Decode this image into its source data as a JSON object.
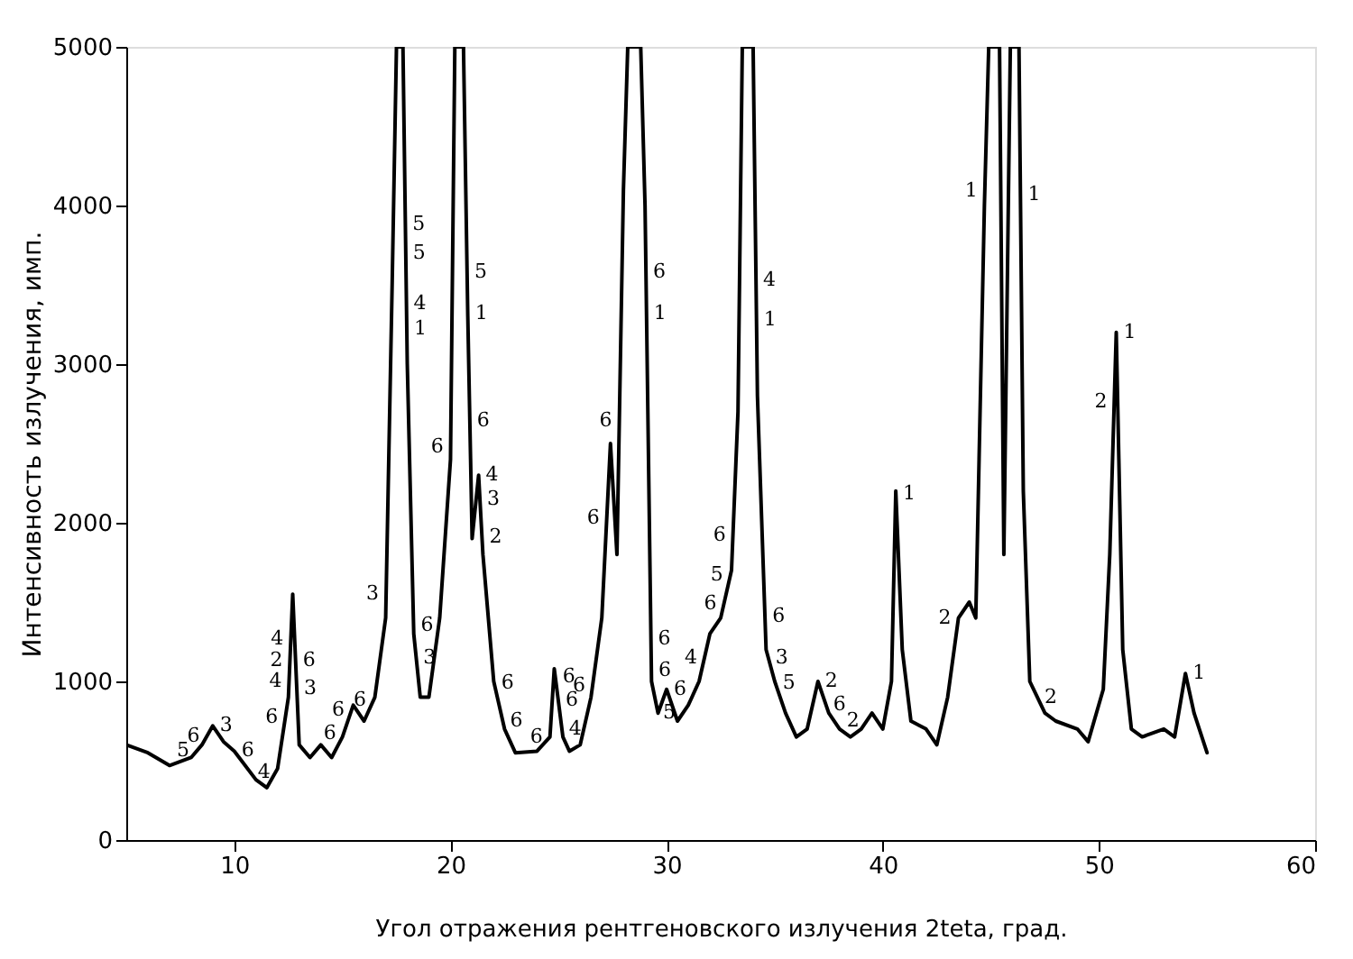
{
  "chart_data": {
    "type": "line",
    "xlabel": "Угол отражения рентгеновского излучения 2teta, град.",
    "ylabel": "Интенсивность излучения, имп.",
    "xlim": [
      5,
      60
    ],
    "xticks": [
      10,
      20,
      30,
      40,
      50,
      60
    ],
    "ylim": [
      0,
      5000
    ],
    "yticks": [
      0,
      1000,
      2000,
      3000,
      4000,
      5000
    ],
    "grid": false,
    "marker": "none",
    "line_style": "solid",
    "series": [
      {
        "color": "#000000",
        "x": [
          5,
          6,
          7,
          8,
          8.5,
          9,
          9.5,
          10,
          11,
          11.5,
          12,
          12.5,
          12.7,
          13,
          13.5,
          14,
          14.5,
          15,
          15.5,
          16,
          16.5,
          17,
          17.3,
          17.5,
          17.8,
          18,
          18.3,
          18.6,
          19,
          19.5,
          20,
          20.2,
          20.6,
          20.8,
          21,
          21.3,
          21.5,
          22,
          22.5,
          23,
          24,
          24.6,
          24.8,
          25.2,
          25.5,
          26,
          26.5,
          27,
          27.4,
          27.7,
          28,
          28.2,
          28.8,
          29,
          29.3,
          29.6,
          30,
          30.5,
          31,
          31.5,
          32,
          32.5,
          33,
          33.3,
          33.5,
          34,
          34.2,
          34.6,
          35,
          35.5,
          36,
          36.5,
          37,
          37.5,
          38,
          38.5,
          39,
          39.5,
          40,
          40.4,
          40.6,
          40.9,
          41.3,
          42,
          42.5,
          43,
          43.5,
          44,
          44.3,
          44.7,
          44.9,
          45.4,
          45.6,
          45.9,
          46.3,
          46.5,
          46.8,
          47.5,
          48,
          49,
          49.5,
          50.2,
          50.5,
          50.8,
          51.1,
          51.5,
          52,
          53,
          53.5,
          54,
          54.4,
          55
        ],
        "values": [
          600,
          550,
          470,
          520,
          600,
          720,
          620,
          560,
          380,
          330,
          450,
          900,
          1550,
          600,
          520,
          600,
          520,
          650,
          850,
          750,
          900,
          1400,
          3500,
          5000,
          5000,
          3000,
          1300,
          900,
          900,
          1400,
          2400,
          5000,
          5000,
          3300,
          1900,
          2300,
          1800,
          1000,
          700,
          550,
          560,
          650,
          1080,
          650,
          560,
          600,
          900,
          1400,
          2500,
          1800,
          4100,
          5000,
          5000,
          4000,
          1000,
          800,
          950,
          750,
          850,
          1000,
          1300,
          1400,
          1700,
          2700,
          5000,
          5000,
          2800,
          1200,
          1000,
          800,
          650,
          700,
          1000,
          800,
          700,
          650,
          700,
          800,
          700,
          1000,
          2200,
          1200,
          750,
          700,
          600,
          900,
          1400,
          1500,
          1400,
          4000,
          5000,
          5000,
          1800,
          5000,
          5000,
          2200,
          1000,
          800,
          750,
          700,
          620,
          950,
          1800,
          3200,
          1200,
          700,
          650,
          700,
          650,
          1050,
          800,
          550
        ]
      }
    ],
    "annotations": [
      {
        "text": "5",
        "x": 8.25,
        "y": 560
      },
      {
        "text": "6",
        "x": 8.73,
        "y": 655
      },
      {
        "text": "3",
        "x": 9.0,
        "y": 720
      },
      {
        "text": "6",
        "x": 10.0,
        "y": 560
      },
      {
        "text": "4",
        "x": 10.75,
        "y": 425
      },
      {
        "text": "4",
        "x": 12.61,
        "y": 1265
      },
      {
        "text": "2",
        "x": 12.57,
        "y": 1130
      },
      {
        "text": "4",
        "x": 12.53,
        "y": 1000
      },
      {
        "text": "6",
        "x": 12.36,
        "y": 775
      },
      {
        "text": "6",
        "x": 12.83,
        "y": 1130
      },
      {
        "text": "3",
        "x": 12.89,
        "y": 955
      },
      {
        "text": "6",
        "x": 15.05,
        "y": 670
      },
      {
        "text": "6",
        "x": 15.43,
        "y": 820
      },
      {
        "text": "6",
        "x": 16.43,
        "y": 880
      },
      {
        "text": "3",
        "x": 17.02,
        "y": 1550
      },
      {
        "text": "5",
        "x": 17.91,
        "y": 3880
      },
      {
        "text": "5",
        "x": 17.93,
        "y": 3700
      },
      {
        "text": "4",
        "x": 17.96,
        "y": 3380
      },
      {
        "text": "1",
        "x": 17.98,
        "y": 3220
      },
      {
        "text": "6",
        "x": 20.01,
        "y": 2480
      },
      {
        "text": "6",
        "x": 18.29,
        "y": 1350
      },
      {
        "text": "3",
        "x": 18.41,
        "y": 1150
      },
      {
        "text": "5",
        "x": 20.77,
        "y": 3580
      },
      {
        "text": "1",
        "x": 20.8,
        "y": 3320
      },
      {
        "text": "6",
        "x": 20.89,
        "y": 2640
      },
      {
        "text": "4",
        "x": 21.3,
        "y": 2300
      },
      {
        "text": "3",
        "x": 21.36,
        "y": 2150
      },
      {
        "text": "2",
        "x": 21.46,
        "y": 1910
      },
      {
        "text": "6",
        "x": 22.02,
        "y": 990
      },
      {
        "text": "6",
        "x": 22.42,
        "y": 750
      },
      {
        "text": "6",
        "x": 24.6,
        "y": 650
      },
      {
        "text": "6",
        "x": 24.85,
        "y": 1030
      },
      {
        "text": "6",
        "x": 24.99,
        "y": 880
      },
      {
        "text": "4",
        "x": 25.15,
        "y": 700
      },
      {
        "text": "6",
        "x": 26.57,
        "y": 970
      },
      {
        "text": "6",
        "x": 27.81,
        "y": 2640
      },
      {
        "text": "6",
        "x": 27.23,
        "y": 2030
      },
      {
        "text": "6",
        "x": 29.04,
        "y": 3580
      },
      {
        "text": "1",
        "x": 29.07,
        "y": 3320
      },
      {
        "text": "6",
        "x": 29.27,
        "y": 1265
      },
      {
        "text": "6",
        "x": 29.29,
        "y": 1070
      },
      {
        "text": "6",
        "x": 30.0,
        "y": 950
      },
      {
        "text": "5",
        "x": 30.75,
        "y": 800
      },
      {
        "text": "4",
        "x": 31.75,
        "y": 1150
      },
      {
        "text": "6",
        "x": 32.65,
        "y": 1490
      },
      {
        "text": "5",
        "x": 32.95,
        "y": 1670
      },
      {
        "text": "6",
        "x": 33.07,
        "y": 1920
      },
      {
        "text": "4",
        "x": 34.13,
        "y": 3530
      },
      {
        "text": "1",
        "x": 34.16,
        "y": 3280
      },
      {
        "text": "6",
        "x": 34.55,
        "y": 1410
      },
      {
        "text": "3",
        "x": 34.7,
        "y": 1150
      },
      {
        "text": "5",
        "x": 35.03,
        "y": 990
      },
      {
        "text": "2",
        "x": 37.0,
        "y": 1000
      },
      {
        "text": "6",
        "x": 37.375,
        "y": 850
      },
      {
        "text": "2",
        "x": 39.25,
        "y": 750
      },
      {
        "text": "1",
        "x": 40.6,
        "y": 2180
      },
      {
        "text": "2",
        "x": 43.5,
        "y": 1400
      },
      {
        "text": "1",
        "x": 44.718,
        "y": 4090
      },
      {
        "text": "1",
        "x": 46.37,
        "y": 4070
      },
      {
        "text": "2",
        "x": 47.15,
        "y": 900
      },
      {
        "text": "1",
        "x": 50.8,
        "y": 3200
      },
      {
        "text": "2",
        "x": 50.71,
        "y": 2760
      },
      {
        "text": "1",
        "x": 54.0,
        "y": 1050
      }
    ]
  }
}
